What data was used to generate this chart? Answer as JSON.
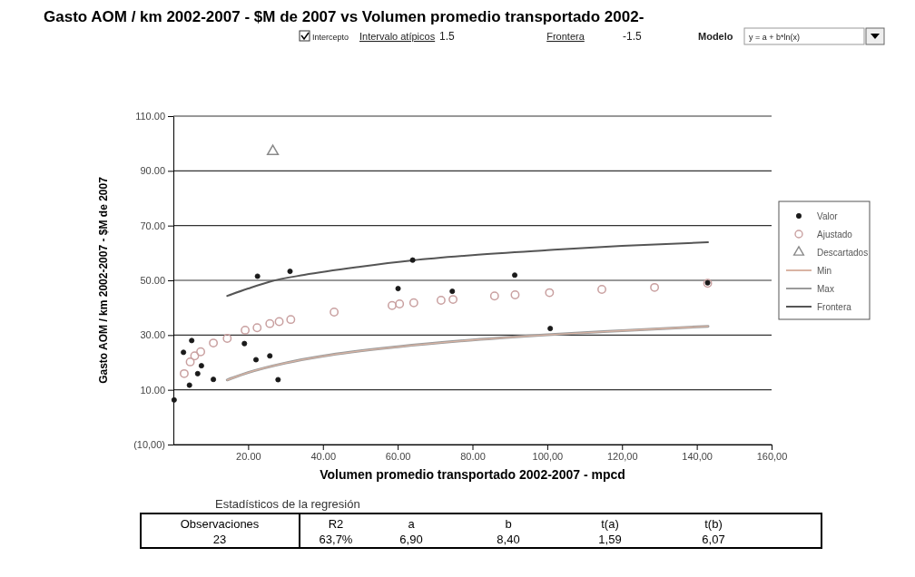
{
  "chart_data": {
    "type": "scatter",
    "title": "Gasto AOM / km 2002-2007 - $M de 2007 vs Volumen promedio transportado 2002-",
    "xlabel": "Volumen promedio transportado 2002-2007 - mpcd",
    "ylabel": "Gasto AOM / km 2002-2007 - $M de 2007",
    "xlim": [
      0,
      160
    ],
    "ylim": [
      -10,
      110
    ],
    "xticks": [
      {
        "value": 20,
        "label": "20.00"
      },
      {
        "value": 40,
        "label": "40.00"
      },
      {
        "value": 60,
        "label": "60.00"
      },
      {
        "value": 80,
        "label": "80.00"
      },
      {
        "value": 100,
        "label": "100,00"
      },
      {
        "value": 120,
        "label": "120,00"
      },
      {
        "value": 140,
        "label": "140,00"
      },
      {
        "value": 160,
        "label": "160,00"
      }
    ],
    "yticks": [
      {
        "value": -10,
        "label": "(10,00)"
      },
      {
        "value": 10,
        "label": "10.00"
      },
      {
        "value": 30,
        "label": "30.00"
      },
      {
        "value": 50,
        "label": "50.00"
      },
      {
        "value": 70,
        "label": "70.00"
      },
      {
        "value": 90,
        "label": "90.00"
      },
      {
        "value": 110,
        "label": "110.00"
      }
    ],
    "grid": "y",
    "legend": "right",
    "series": [
      {
        "name": "Valor",
        "marker": "circle",
        "color": "#1a1a1a",
        "x": [
          0.2,
          2.7,
          4.3,
          4.9,
          6.5,
          7.5,
          10.7,
          19.0,
          22.1,
          22.5,
          25.8,
          28.0,
          31.2,
          60.1,
          64.0,
          74.6,
          91.3,
          100.8,
          142.9
        ],
        "values": [
          6.3,
          23.7,
          11.7,
          28.0,
          15.9,
          18.8,
          13.8,
          26.9,
          21.0,
          51.5,
          22.4,
          13.7,
          53.3,
          47.0,
          57.4,
          46.0,
          51.9,
          32.4,
          49.1
        ]
      },
      {
        "name": "Ajustado",
        "marker": "circle",
        "color": "#c9a0a0",
        "x": [
          2.9,
          4.5,
          5.7,
          7.3,
          10.7,
          14.4,
          19.2,
          22.4,
          25.8,
          28.3,
          31.4,
          43.0,
          58.5,
          60.5,
          64.3,
          71.6,
          74.8,
          85.9,
          91.4,
          100.6,
          114.6,
          128.7,
          142.9
        ],
        "values": [
          15.9,
          20.2,
          22.4,
          23.9,
          27.1,
          28.8,
          31.8,
          32.7,
          34.2,
          34.9,
          35.7,
          38.4,
          40.8,
          41.4,
          41.8,
          42.7,
          43.0,
          44.3,
          44.7,
          45.5,
          46.7,
          47.4,
          48.9
        ]
      },
      {
        "name": "Descartados",
        "marker": "triangle",
        "color": "#8a8a8a",
        "x": [
          26.6
        ],
        "values": [
          97.1
        ]
      },
      {
        "name": "Min",
        "type": "line",
        "marker": "none",
        "color": "#d9b4a4",
        "x": [
          14.4,
          20,
          30,
          40,
          60,
          80,
          100,
          120,
          143
        ],
        "values": [
          13.6,
          16.3,
          19.8,
          22.3,
          25.7,
          28.2,
          30.1,
          31.6,
          33.2
        ]
      },
      {
        "name": "Max",
        "type": "line",
        "marker": "none",
        "color": "#9a9a9a",
        "x": [
          14.4,
          20,
          30,
          40,
          60,
          80,
          100,
          120,
          143
        ],
        "values": [
          13.6,
          16.3,
          19.8,
          22.3,
          25.7,
          28.2,
          30.1,
          31.6,
          33.2
        ]
      },
      {
        "name": "Frontera",
        "type": "line",
        "marker": "none",
        "color": "#555555",
        "x": [
          14.4,
          20,
          26,
          35,
          50,
          64,
          80,
          100,
          120,
          143
        ],
        "values": [
          44.3,
          47.0,
          49.6,
          52.0,
          55.0,
          57.3,
          59.2,
          61.0,
          62.6,
          63.9
        ]
      }
    ],
    "annotations": [
      "Intercepto",
      "Intervalo atípicos",
      "1.5",
      "Frontera",
      "-1.5",
      "Modelo",
      "y = a + b*ln(x)",
      "Estadísticos de la regresión",
      "Observaciones",
      "23",
      "R2",
      "63,7%",
      "a",
      "6,90",
      "b",
      "8,40",
      "t(a)",
      "1,59",
      "t(b)",
      "6,07"
    ]
  }
}
